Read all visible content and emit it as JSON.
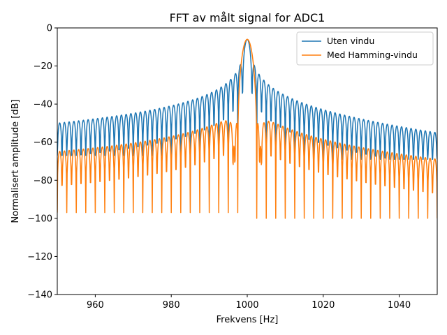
{
  "chart_data": {
    "type": "line",
    "title": "FFT av målt signal for ADC1",
    "xlabel": "Frekvens [Hz]",
    "ylabel": "Normalisert amplitude [dB]",
    "xlim": [
      950,
      1050
    ],
    "ylim": [
      -140,
      0
    ],
    "xticks": [
      960,
      980,
      1000,
      1020,
      1040
    ],
    "yticks": [
      0,
      -20,
      -40,
      -60,
      -80,
      -100,
      -120,
      -140
    ],
    "grid": false,
    "legend_position": "top-right",
    "sample_spacing_hz": 0.1,
    "center_frequency_hz": 1000,
    "peak_db": -6,
    "series": [
      {
        "name": "Uten vindu",
        "color": "#1f77b4",
        "window": "rectangular",
        "sidelobe_spacing_hz": 1.25,
        "envelope_db_at_950": -50,
        "envelope_db_at_1050": -55,
        "null_floor_db_at_950": -67,
        "null_floor_db_at_1050": -69
      },
      {
        "name": "Med Hamming-vindu",
        "color": "#ff7f0e",
        "window": "hamming",
        "sidelobe_spacing_hz": 1.25,
        "envelope_db_at_950": -65,
        "envelope_db_at_1050": -69,
        "null_floor_db_at_950": -97,
        "null_floor_db_at_1050": -100
      }
    ]
  }
}
